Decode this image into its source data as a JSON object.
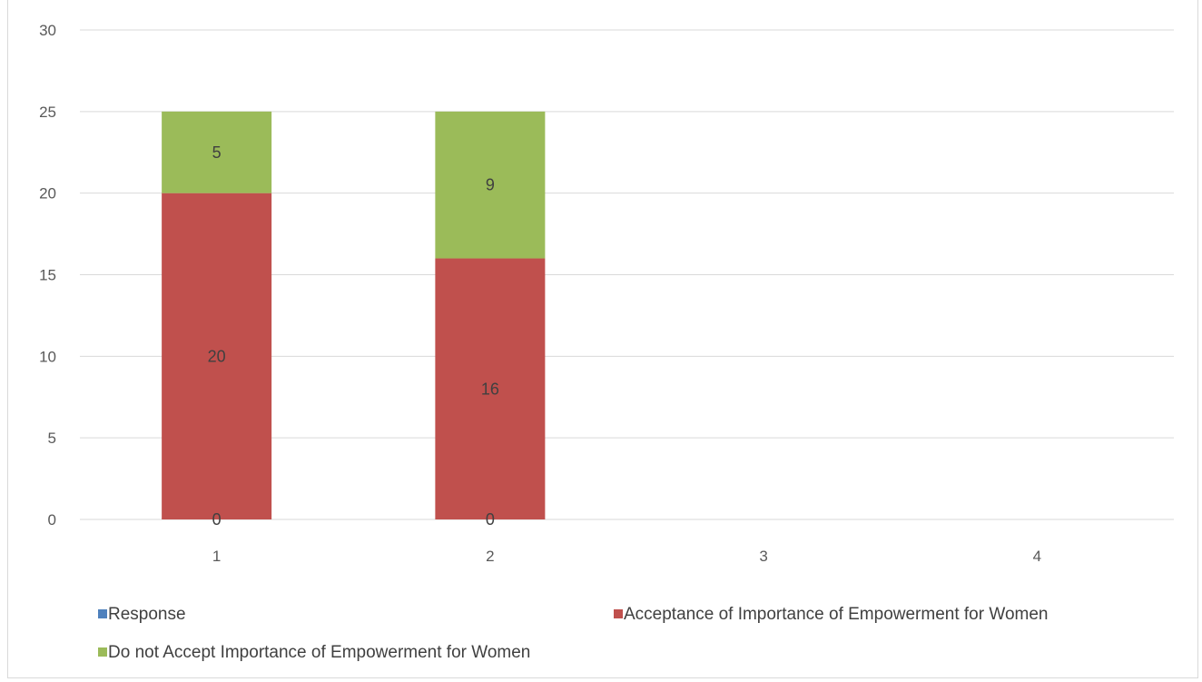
{
  "chart_data": {
    "type": "bar",
    "stacked": true,
    "categories": [
      "1",
      "2",
      "3",
      "4"
    ],
    "series": [
      {
        "name": "Response",
        "color": "#4f81bd",
        "values": [
          0,
          0,
          null,
          null
        ]
      },
      {
        "name": "Acceptance of Importance of Empowerment for Women",
        "color": "#c0504d",
        "values": [
          20,
          16,
          null,
          null
        ]
      },
      {
        "name": "Do not Accept Importance of Empowerment for Women",
        "color": "#9bbb59",
        "values": [
          5,
          9,
          null,
          null
        ]
      }
    ],
    "ylim": [
      0,
      30
    ],
    "yticks": [
      "0",
      "5",
      "10",
      "15",
      "20",
      "25",
      "30"
    ],
    "grid": true,
    "legend": "bottom"
  }
}
